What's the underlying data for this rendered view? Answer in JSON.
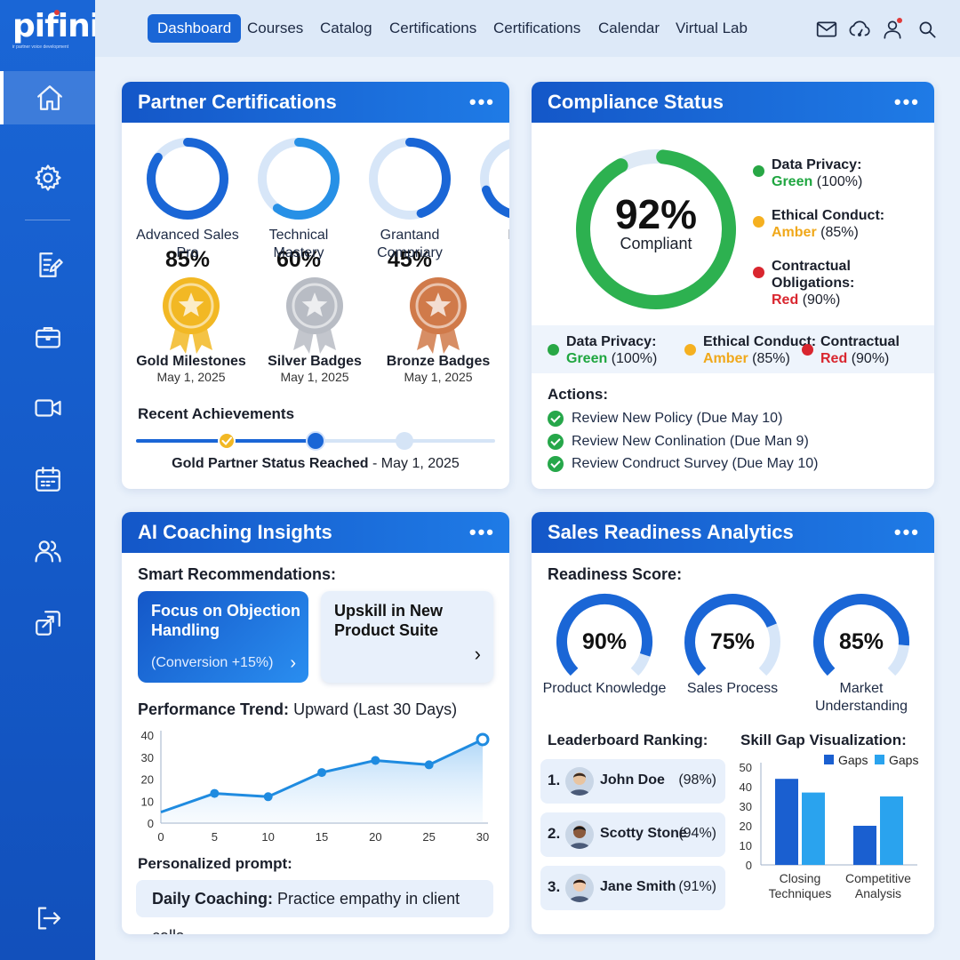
{
  "app": {
    "logo": "pifini",
    "tagline": "ir partner voice development"
  },
  "nav": {
    "items": [
      "Dashboard",
      "Courses",
      "Catalog",
      "Certifications",
      "Certifications",
      "Calendar",
      "Virtual Lab"
    ],
    "active_index": 0
  },
  "topbar_icons": [
    "mail-icon",
    "cloud-gauge-icon",
    "user-icon",
    "search-icon"
  ],
  "sidebar": {
    "icons": [
      "home-icon",
      "gear-icon",
      "edit-document-icon",
      "briefcase-icon",
      "video-icon",
      "calendar-icon",
      "users-icon",
      "share-icon",
      "logout-icon"
    ]
  },
  "partner_certifications": {
    "title": "Partner Certifications",
    "rings": [
      {
        "value": "85%",
        "pct": 85,
        "label_1": "Advanced Sales",
        "label_2": "Pro"
      },
      {
        "value": "60%",
        "pct": 60,
        "label_1": "Technical",
        "label_2": "Mastery"
      },
      {
        "value": "45%",
        "pct": 45,
        "label_1": "Grantand",
        "label_2": "Compriary"
      },
      {
        "value": "1",
        "pct": 70,
        "label_1": "Part",
        "label_2": "Mi"
      }
    ],
    "badges": [
      {
        "name": "Gold Milestones",
        "date": "May 1, 2025",
        "color": "#f2b824"
      },
      {
        "name": "Silver Badges",
        "date": "May 1, 2025",
        "color": "#b8bcc4"
      },
      {
        "name": "Bronze Badges",
        "date": "May 1, 2025",
        "color": "#d07a4a"
      }
    ],
    "recent_title": "Recent Achievements",
    "recent_bold": "Gold Partner Status Reached",
    "recent_rest": " - May 1, 2025"
  },
  "compliance": {
    "title": "Compliance Status",
    "score": "92%",
    "score_pct": 92,
    "score_label": "Compliant",
    "legend": [
      {
        "name": "Data Privacy:",
        "level": "Green",
        "pct": "(100%)",
        "color": "#28a745"
      },
      {
        "name": "Ethical Conduct:",
        "level": "Amber",
        "pct": "(85%)",
        "color": "#f5b020"
      },
      {
        "name": "Contractual Obligations:",
        "level": "Red",
        "pct": "(90%)",
        "color": "#d9262f"
      }
    ],
    "strip": [
      {
        "name": "Data Privacy:",
        "level": "Green",
        "pct": "(100%)"
      },
      {
        "name": "Ethical Conduct:",
        "level": "Amber",
        "pct": "(85%)"
      },
      {
        "name": "Contractual",
        "level": "Red",
        "pct": "(90%)"
      }
    ],
    "actions_title": "Actions:",
    "actions": [
      "Review New Policy (Due May 10)",
      "Review New Conlination (Due Man 9)",
      "Review Condruct Survey (Due May 10)"
    ]
  },
  "ai_coaching": {
    "title": "AI Coaching Insights",
    "smart_title": "Smart Recommendations:",
    "rec1_line1": "Focus on Objection",
    "rec1_line2": "Handling",
    "rec1_sub": "(Conversion +15%)",
    "rec2_line1": "Upskill in New",
    "rec2_line2": "Product Suite",
    "trend_bold": "Performance Trend:",
    "trend_rest": " Upward (Last 30 Days)",
    "prompt_title": "Personalized prompt:",
    "prompt_bold": "Daily Coaching:",
    "prompt_rest": " Practice empathy in client calls."
  },
  "sales_readiness": {
    "title": "Sales Readiness Analytics",
    "score_title": "Readiness Score:",
    "gauges": [
      {
        "value": "90%",
        "pct": 90,
        "label_1": "Product Knowledge",
        "label_2": ""
      },
      {
        "value": "75%",
        "pct": 75,
        "label_1": "Sales Process",
        "label_2": ""
      },
      {
        "value": "85%",
        "pct": 85,
        "label_1": "Market",
        "label_2": "Understanding"
      }
    ],
    "leaderboard_title": "Leaderboard Ranking:",
    "leaderboard": [
      {
        "rank": "1.",
        "name": "John Doe",
        "score": "(98%)"
      },
      {
        "rank": "2.",
        "name": "Scotty Stone",
        "score": "(94%)"
      },
      {
        "rank": "3.",
        "name": "Jane Smith",
        "score": "(91%)"
      }
    ],
    "skill_title": "Skill Gap Visualization:"
  },
  "chart_data": [
    {
      "type": "line",
      "x": [
        0,
        5,
        10,
        15,
        20,
        25,
        30
      ],
      "y": [
        5,
        13.5,
        12,
        23,
        28.5,
        26.5,
        38
      ],
      "xlim": [
        0,
        30
      ],
      "ylim": [
        0,
        40
      ],
      "xticks": [
        0,
        5,
        10,
        15,
        20,
        25,
        30
      ],
      "yticks": [
        0,
        10,
        20,
        30,
        40
      ],
      "color": "#1f8be0"
    },
    {
      "type": "bar",
      "categories": [
        "Closing Techniques",
        "Competitive Analysis"
      ],
      "category_lines": [
        [
          "Closing",
          "Techniques"
        ],
        [
          "Competitive",
          "Analysis"
        ]
      ],
      "series": [
        {
          "name": "Gaps",
          "values": [
            44,
            20
          ],
          "color": "#1a5fd0"
        },
        {
          "name": "Gaps",
          "values": [
            37,
            35
          ],
          "color": "#2aa3ee"
        }
      ],
      "ylim": [
        0,
        50
      ],
      "yticks": [
        0,
        10,
        20,
        30,
        40,
        50
      ],
      "legend": "top-right"
    }
  ]
}
